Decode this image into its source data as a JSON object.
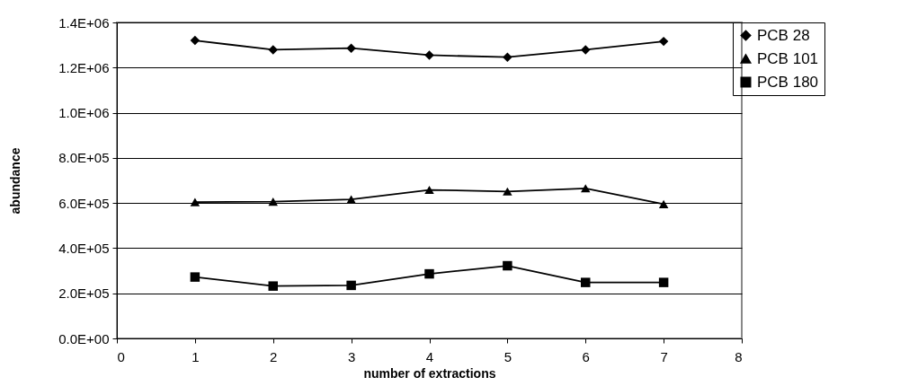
{
  "chart_data": {
    "type": "line",
    "xlabel": "number of extractions",
    "ylabel": "abundance",
    "x": [
      1,
      2,
      3,
      4,
      5,
      6,
      7
    ],
    "series": [
      {
        "name": "PCB 28",
        "color": "#000000",
        "marker": "diamond",
        "values": [
          1320000,
          1279000,
          1286000,
          1255000,
          1246000,
          1279000,
          1316000
        ]
      },
      {
        "name": "PCB 101",
        "color": "#000000",
        "marker": "triangle",
        "values": [
          604000,
          606000,
          616000,
          658000,
          651000,
          665000,
          595000
        ]
      },
      {
        "name": "PCB 180",
        "color": "#000000",
        "marker": "square",
        "values": [
          272000,
          232000,
          235000,
          286000,
          322000,
          248000,
          248000
        ]
      }
    ],
    "xlim": [
      0,
      8
    ],
    "xticks": [
      0,
      1,
      2,
      3,
      4,
      5,
      6,
      7,
      8
    ],
    "ylim": [
      0,
      1400000
    ],
    "yticks": [
      {
        "value": 0,
        "label": "0.0E+00"
      },
      {
        "value": 200000,
        "label": "2.0E+05"
      },
      {
        "value": 400000,
        "label": "4.0E+05"
      },
      {
        "value": 600000,
        "label": "6.0E+05"
      },
      {
        "value": 800000,
        "label": "8.0E+05"
      },
      {
        "value": 1000000,
        "label": "1.0E+06"
      },
      {
        "value": 1200000,
        "label": "1.2E+06"
      },
      {
        "value": 1400000,
        "label": "1.4E+06"
      }
    ],
    "grid": "y",
    "legend": "right",
    "line_style": "solid"
  }
}
